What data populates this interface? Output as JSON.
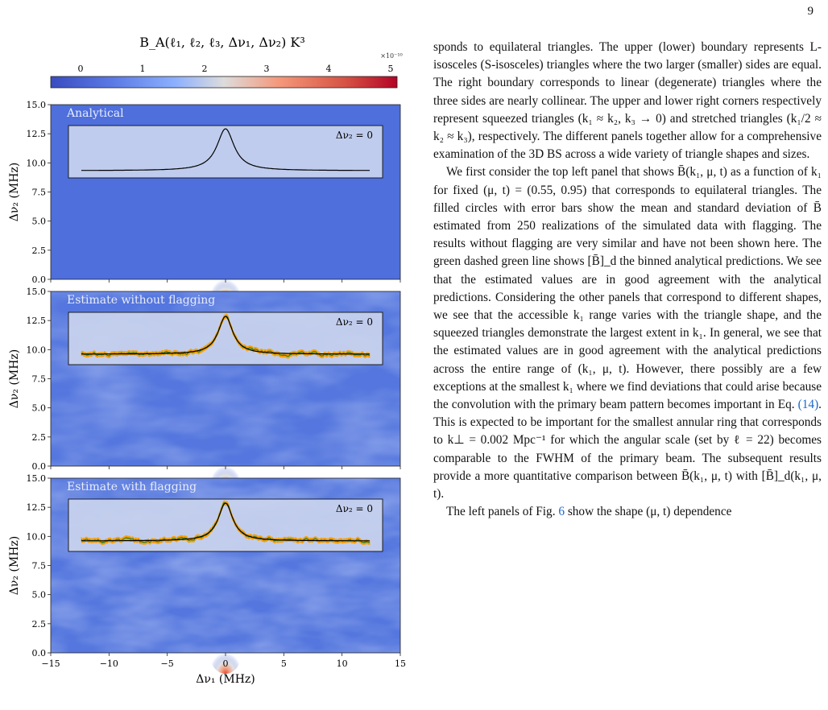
{
  "page_number": "9",
  "figure": {
    "colorbar": {
      "title": "B_A(ℓ₁, ℓ₂, ℓ₃, Δν₁, Δν₂) K³",
      "ticks": [
        "0",
        "1",
        "2",
        "3",
        "4",
        "5"
      ],
      "multiplier": "×10⁻¹⁰",
      "colormap": [
        "#3a4cc0",
        "#6f92f3",
        "#aac7fd",
        "#dddcdc",
        "#f7b89c",
        "#e7745b",
        "#b40426"
      ]
    },
    "panels": [
      {
        "title": "Analytical",
        "noisy": false
      },
      {
        "title": "Estimate without flagging",
        "noisy": true
      },
      {
        "title": "Estimate with flagging",
        "noisy": true
      }
    ],
    "inset_label": "Δν₂ = 0",
    "ylabel": "Δν₂ (MHz)",
    "xlabel": "Δν₁ (MHz)",
    "y_ticks": [
      "0.0",
      "2.5",
      "5.0",
      "7.5",
      "10.0",
      "12.5",
      "15.0"
    ],
    "x_ticks": [
      "−15",
      "−10",
      "−5",
      "0",
      "5",
      "10",
      "15"
    ],
    "colors": {
      "inset_line": "#000000",
      "estimate_line": "#1b7a2a",
      "error_band": "#f5a00a"
    }
  },
  "text": {
    "p1": "sponds to equilateral triangles. The upper (lower) boundary represents L-isosceles (S-isosceles) triangles where the two larger (smaller) sides are equal. The right boundary corresponds to linear (degenerate) triangles where the three sides are nearly collinear. The upper and lower right corners respectively represent squeezed triangles (k₁ ≈ k₂, k₃ → 0) and stretched triangles (k₁/2 ≈ k₂ ≈ k₃), respectively. The different panels together allow for a comprehensive examination of the 3D BS across a wide variety of triangle shapes and sizes.",
    "p2": "We first consider the top left panel that shows B̄(k₁, μ, t) as a function of k₁ for fixed (μ, t) = (0.55, 0.95) that corresponds to equilateral triangles. The filled circles with error bars show the mean and standard deviation of B̄ estimated from 250 realizations of the simulated data with flagging. The results without flagging are very similar and have not been shown here. The green dashed green line shows [B̄]_d the binned analytical predictions. We see that the estimated values are in good agreement with the analytical predictions. Considering the other panels that correspond to different shapes, we see that the accessible k₁ range varies with the triangle shape, and the squeezed triangles demonstrate the largest extent in k₁. In general, we see that the estimated values are in good agreement with the analytical predictions across the entire range of (k₁, μ, t). However, there possibly are a few exceptions at the smallest k₁ where we find deviations that could arise because the convolution with the primary beam pattern becomes important in Eq. ",
    "p2_link": "(14)",
    "p2_end": ". This is expected to be important for the smallest annular ring that corresponds to k⊥ = 0.002 Mpc⁻¹ for which the angular scale (set by ℓ = 22) becomes comparable to the FWHM of the primary beam. The subsequent results provide a more quantitative comparison between B̄(k₁, μ, t) with [B̄]_d(k₁, μ, t).",
    "p3_start": "The left panels of Fig. ",
    "p3_link": "6",
    "p3_end": " show the shape (μ, t) dependence"
  }
}
